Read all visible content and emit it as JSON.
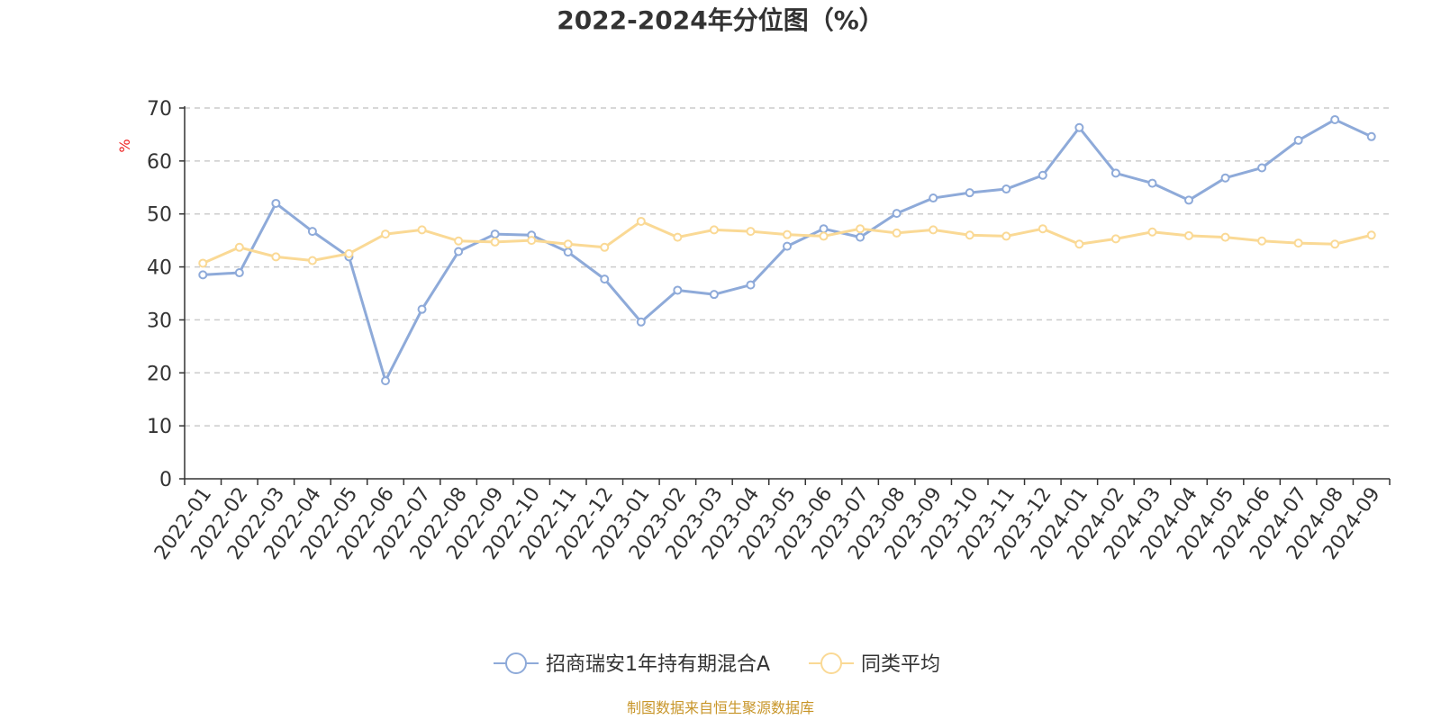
{
  "chart_data": {
    "type": "line",
    "title": "2022-2024年分位图（%）",
    "ylabel": "%",
    "xlabel": "",
    "ylim": [
      0,
      70
    ],
    "yticks": [
      0,
      10,
      20,
      30,
      40,
      50,
      60,
      70
    ],
    "grid": "horizontal dashed",
    "legend_position": "bottom-center",
    "categories": [
      "2022-01",
      "2022-02",
      "2022-03",
      "2022-04",
      "2022-05",
      "2022-06",
      "2022-07",
      "2022-08",
      "2022-09",
      "2022-10",
      "2022-11",
      "2022-12",
      "2023-01",
      "2023-02",
      "2023-03",
      "2023-04",
      "2023-05",
      "2023-06",
      "2023-07",
      "2023-08",
      "2023-09",
      "2023-10",
      "2023-11",
      "2023-12",
      "2024-01",
      "2024-02",
      "2024-03",
      "2024-04",
      "2024-05",
      "2024-06",
      "2024-07",
      "2024-08",
      "2024-09"
    ],
    "series": [
      {
        "name": "招商瑞安1年持有期混合A",
        "color": "#8eaad9",
        "values": [
          38.5,
          38.9,
          52.0,
          46.7,
          41.9,
          18.5,
          32.0,
          42.9,
          46.2,
          46.0,
          42.8,
          37.7,
          29.6,
          35.6,
          34.8,
          36.6,
          43.9,
          47.2,
          45.6,
          50.1,
          53.0,
          54.0,
          54.7,
          57.3,
          66.3,
          57.7,
          55.8,
          52.6,
          56.8,
          58.7,
          63.9,
          67.8,
          64.6
        ]
      },
      {
        "name": "同类平均",
        "color": "#fad995",
        "values": [
          40.7,
          43.7,
          41.9,
          41.2,
          42.5,
          46.2,
          47.0,
          44.9,
          44.7,
          45.0,
          44.3,
          43.7,
          48.6,
          45.6,
          47.0,
          46.7,
          46.1,
          45.8,
          47.2,
          46.4,
          47.0,
          46.0,
          45.8,
          47.2,
          44.3,
          45.3,
          46.6,
          45.9,
          45.6,
          44.9,
          44.5,
          44.3,
          46.0
        ]
      }
    ]
  },
  "source": "制图数据来自恒生聚源数据库"
}
